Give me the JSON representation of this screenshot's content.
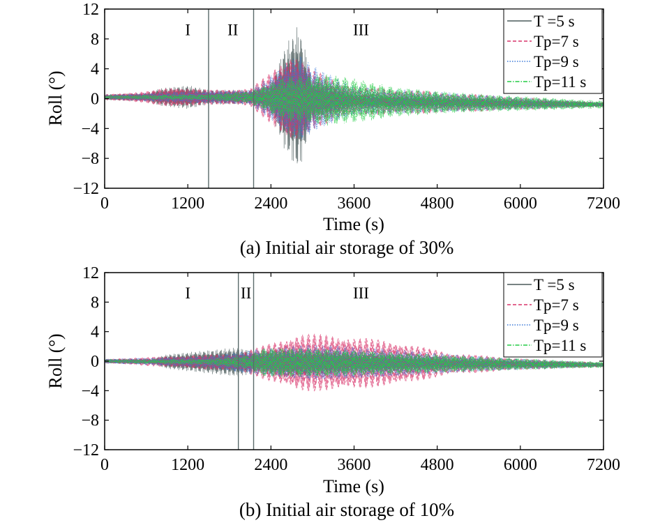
{
  "chart_data": [
    {
      "type": "line",
      "caption": "(a) Initial air storage of 30%",
      "xlabel": "Time (s)",
      "ylabel": "Roll (°)",
      "xlim": [
        0,
        7200
      ],
      "ylim": [
        -12,
        12
      ],
      "xticks": [
        0,
        1200,
        2400,
        3600,
        4800,
        6000,
        7200
      ],
      "yticks": [
        12,
        8,
        4,
        0,
        -4,
        -8,
        -12
      ],
      "xtick_labels": [
        "0",
        "1200",
        "2400",
        "3600",
        "4800",
        "6000",
        "7200"
      ],
      "ytick_labels": [
        "12",
        "8",
        "4",
        "0",
        "−4",
        "−8",
        "−12"
      ],
      "grid": false,
      "legend_position": "top-right",
      "stage_boundaries": [
        1500,
        2150
      ],
      "stage_labels": [
        {
          "text": "I",
          "x": 1200,
          "y": 8.5
        },
        {
          "text": "II",
          "x": 1850,
          "y": 8.5
        },
        {
          "text": "III",
          "x": 3700,
          "y": 8.5
        }
      ],
      "series": [
        {
          "name": "T =5 s",
          "color": "#4a5a5a",
          "dash": "solid",
          "amplitude_envelope": [
            [
              0,
              0.4
            ],
            [
              600,
              0.6
            ],
            [
              800,
              1.2
            ],
            [
              1200,
              1.6
            ],
            [
              1500,
              1.0
            ],
            [
              2100,
              1.0
            ],
            [
              2400,
              2.0
            ],
            [
              2600,
              7.0
            ],
            [
              2800,
              10.0
            ],
            [
              3000,
              3.0
            ],
            [
              3600,
              1.0
            ],
            [
              7200,
              0.3
            ]
          ],
          "mean_drift": [
            [
              0,
              0.2
            ],
            [
              2000,
              0.2
            ],
            [
              4000,
              -0.4
            ],
            [
              7200,
              -0.8
            ]
          ]
        },
        {
          "name": "Tp=7 s",
          "color": "#d8336a",
          "dash": "dash",
          "amplitude_envelope": [
            [
              0,
              0.4
            ],
            [
              600,
              0.8
            ],
            [
              1000,
              1.4
            ],
            [
              1500,
              1.0
            ],
            [
              2100,
              1.2
            ],
            [
              2400,
              3.5
            ],
            [
              2700,
              6.5
            ],
            [
              3000,
              4.0
            ],
            [
              3600,
              2.0
            ],
            [
              7200,
              0.3
            ]
          ],
          "mean_drift": [
            [
              0,
              0.2
            ],
            [
              2000,
              0.2
            ],
            [
              4000,
              -0.4
            ],
            [
              7200,
              -0.8
            ]
          ]
        },
        {
          "name": "Tp=9 s",
          "color": "#3a78d8",
          "dash": "dot",
          "amplitude_envelope": [
            [
              0,
              0.3
            ],
            [
              1200,
              0.8
            ],
            [
              2100,
              1.0
            ],
            [
              2400,
              3.0
            ],
            [
              2800,
              6.0
            ],
            [
              3100,
              4.0
            ],
            [
              3600,
              2.0
            ],
            [
              7200,
              0.3
            ]
          ],
          "mean_drift": [
            [
              0,
              0.2
            ],
            [
              2000,
              0.2
            ],
            [
              4000,
              -0.4
            ],
            [
              7200,
              -0.8
            ]
          ]
        },
        {
          "name": "Tp=11 s",
          "color": "#22cc44",
          "dash": "dashdot",
          "amplitude_envelope": [
            [
              0,
              0.2
            ],
            [
              1500,
              0.4
            ],
            [
              2100,
              0.8
            ],
            [
              2600,
              3.0
            ],
            [
              3200,
              3.5
            ],
            [
              3600,
              3.0
            ],
            [
              4200,
              2.0
            ],
            [
              5000,
              1.4
            ],
            [
              7200,
              0.5
            ]
          ],
          "mean_drift": [
            [
              0,
              0.2
            ],
            [
              2000,
              0.2
            ],
            [
              4000,
              -0.4
            ],
            [
              7200,
              -0.8
            ]
          ]
        }
      ]
    },
    {
      "type": "line",
      "caption": "(b) Initial air storage of 10%",
      "xlabel": "Time (s)",
      "ylabel": "Roll (°)",
      "xlim": [
        0,
        7200
      ],
      "ylim": [
        -12,
        12
      ],
      "xticks": [
        0,
        1200,
        2400,
        3600,
        4800,
        6000,
        7200
      ],
      "yticks": [
        12,
        8,
        4,
        0,
        -4,
        -8,
        -12
      ],
      "xtick_labels": [
        "0",
        "1200",
        "2400",
        "3600",
        "4800",
        "6000",
        "7200"
      ],
      "ytick_labels": [
        "12",
        "8",
        "4",
        "0",
        "−4",
        "−8",
        "−12"
      ],
      "grid": false,
      "legend_position": "top-right",
      "stage_boundaries": [
        1930,
        2150
      ],
      "stage_labels": [
        {
          "text": "I",
          "x": 1200,
          "y": 8.5
        },
        {
          "text": "II",
          "x": 2040,
          "y": 8.5
        },
        {
          "text": "III",
          "x": 3700,
          "y": 8.5
        }
      ],
      "series": [
        {
          "name": "T =5 s",
          "color": "#4a5a5a",
          "dash": "solid",
          "amplitude_envelope": [
            [
              0,
              0.3
            ],
            [
              700,
              0.4
            ],
            [
              900,
              1.0
            ],
            [
              1500,
              1.6
            ],
            [
              1900,
              2.0
            ],
            [
              2200,
              1.5
            ],
            [
              2600,
              2.0
            ],
            [
              3600,
              1.5
            ],
            [
              5000,
              0.8
            ],
            [
              7200,
              0.3
            ]
          ],
          "mean_drift": [
            [
              0,
              0.0
            ],
            [
              3000,
              -0.2
            ],
            [
              7200,
              -0.5
            ]
          ]
        },
        {
          "name": "Tp=7 s",
          "color": "#d8336a",
          "dash": "dash",
          "amplitude_envelope": [
            [
              0,
              0.3
            ],
            [
              1000,
              0.8
            ],
            [
              1900,
              1.2
            ],
            [
              2200,
              2.0
            ],
            [
              2800,
              4.0
            ],
            [
              3400,
              3.8
            ],
            [
              4200,
              3.0
            ],
            [
              5000,
              1.5
            ],
            [
              6000,
              0.8
            ],
            [
              7200,
              0.3
            ]
          ],
          "mean_drift": [
            [
              0,
              0.0
            ],
            [
              3000,
              -0.2
            ],
            [
              7200,
              -0.5
            ]
          ]
        },
        {
          "name": "Tp=9 s",
          "color": "#3a78d8",
          "dash": "dot",
          "amplitude_envelope": [
            [
              0,
              0.3
            ],
            [
              1500,
              0.8
            ],
            [
              2200,
              1.8
            ],
            [
              3000,
              2.5
            ],
            [
              4000,
              2.0
            ],
            [
              5500,
              1.0
            ],
            [
              7200,
              0.3
            ]
          ],
          "mean_drift": [
            [
              0,
              0.0
            ],
            [
              3000,
              -0.2
            ],
            [
              7200,
              -0.5
            ]
          ]
        },
        {
          "name": "Tp=11 s",
          "color": "#22cc44",
          "dash": "dashdot",
          "amplitude_envelope": [
            [
              0,
              0.2
            ],
            [
              1500,
              0.4
            ],
            [
              2100,
              1.0
            ],
            [
              2300,
              2.0
            ],
            [
              3000,
              2.0
            ],
            [
              4500,
              1.4
            ],
            [
              6000,
              0.8
            ],
            [
              7200,
              0.4
            ]
          ],
          "mean_drift": [
            [
              0,
              0.0
            ],
            [
              3000,
              -0.2
            ],
            [
              7200,
              -0.5
            ]
          ]
        }
      ]
    }
  ]
}
